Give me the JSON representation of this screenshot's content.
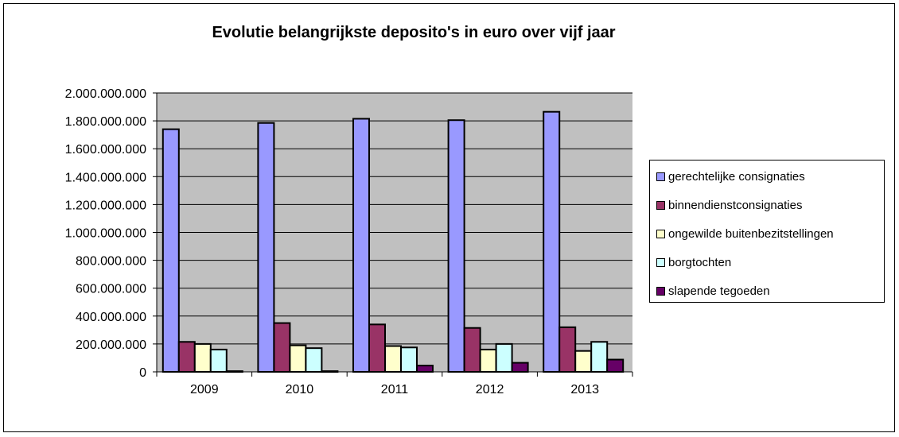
{
  "chart_data": {
    "type": "bar",
    "title": "Evolutie belangrijkste deposito's in euro over vijf jaar",
    "xlabel": "",
    "ylabel": "",
    "categories": [
      "2009",
      "2010",
      "2011",
      "2012",
      "2013"
    ],
    "ylim": [
      0,
      2000000000
    ],
    "yticks": [
      0,
      200000000,
      400000000,
      600000000,
      800000000,
      1000000000,
      1200000000,
      1400000000,
      1600000000,
      1800000000,
      2000000000
    ],
    "ytick_labels": [
      "0",
      "200.000.000",
      "400.000.000",
      "600.000.000",
      "800.000.000",
      "1.000.000.000",
      "1.200.000.000",
      "1.400.000.000",
      "1.600.000.000",
      "1.800.000.000",
      "2.000.000.000"
    ],
    "grid": true,
    "legend_position": "right",
    "plot_background": "#c0c0c0",
    "series": [
      {
        "name": "gerechtelijke consignaties",
        "color": "#9999ff",
        "values": [
          1740000000,
          1785000000,
          1815000000,
          1805000000,
          1865000000
        ]
      },
      {
        "name": "binnendienstconsignaties",
        "color": "#993366",
        "values": [
          215000000,
          350000000,
          340000000,
          315000000,
          320000000
        ]
      },
      {
        "name": "ongewilde buitenbezitstellingen",
        "color": "#ffffcc",
        "values": [
          200000000,
          190000000,
          185000000,
          160000000,
          150000000
        ]
      },
      {
        "name": "borgtochten",
        "color": "#ccffff",
        "values": [
          160000000,
          170000000,
          175000000,
          200000000,
          215000000
        ]
      },
      {
        "name": "slapende tegoeden",
        "color": "#660066",
        "values": [
          5000000,
          5000000,
          45000000,
          65000000,
          88000000
        ]
      }
    ]
  }
}
